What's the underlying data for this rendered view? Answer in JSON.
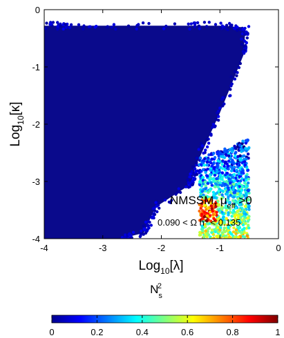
{
  "chart_data": {
    "type": "scatter",
    "xlabel_prefix": "Log",
    "xlabel_sub": "10",
    "xlabel_arg": "[λ]",
    "ylabel_prefix": "Log",
    "ylabel_sub": "10",
    "ylabel_arg": "[κ]",
    "xlim": [
      -4,
      0
    ],
    "ylim": [
      -4,
      0
    ],
    "xticks": [
      -4,
      -3,
      -2,
      -1,
      0
    ],
    "yticks": [
      0,
      -1,
      -2,
      -3,
      -4
    ],
    "grid": false,
    "region_edge": [
      [
        -4,
        -0.28
      ],
      [
        -3.5,
        -0.28
      ],
      [
        -2,
        -0.28
      ],
      [
        -1,
        -0.28
      ],
      [
        -0.56,
        -0.31
      ],
      [
        -0.6,
        -0.8
      ],
      [
        -1.0,
        -1.8
      ],
      [
        -1.4,
        -2.7
      ],
      [
        -1.5,
        -3.05
      ],
      [
        -2.1,
        -3.45
      ],
      [
        -2.3,
        -3.9
      ],
      [
        -2.7,
        -4
      ]
    ],
    "region_color": "#0a0a8c",
    "colorbar": {
      "label_base": "N",
      "label_sub": "s",
      "label_sup": "2",
      "ticks": [
        "0",
        "0.2",
        "0.4",
        "0.6",
        "0.8",
        "1"
      ],
      "range": [
        0,
        1
      ],
      "colormap": "jet"
    },
    "annotations": {
      "model_line": {
        "main": "NMSSM, μ",
        "sub": "eff",
        "tail": " >0"
      },
      "relic_line": {
        "low": "0.090 < Ω h",
        "sup": "2",
        "high": " < 0.135"
      }
    }
  }
}
